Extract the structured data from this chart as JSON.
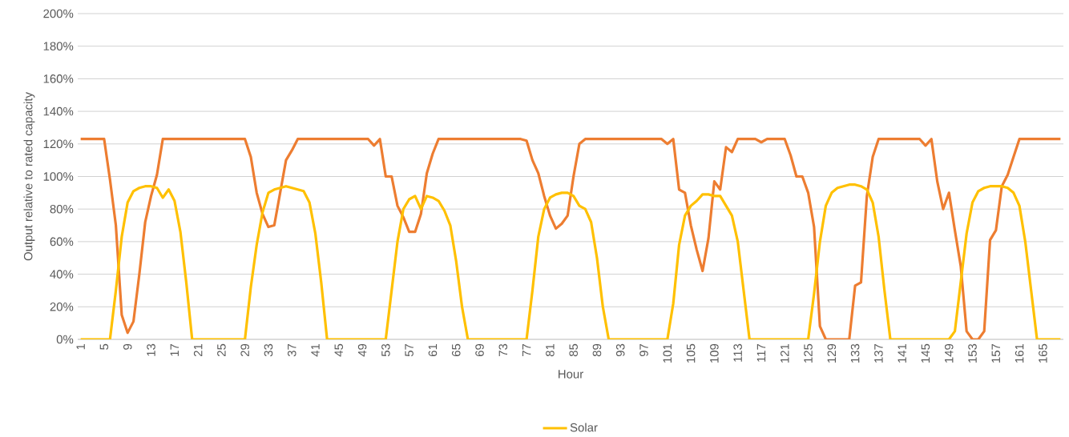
{
  "chart_data": {
    "type": "line",
    "xlabel": "Hour",
    "ylabel": "Output relative to rated capacity",
    "x": [
      1,
      2,
      3,
      4,
      5,
      6,
      7,
      8,
      9,
      10,
      11,
      12,
      13,
      14,
      15,
      16,
      17,
      18,
      19,
      20,
      21,
      22,
      23,
      24,
      25,
      26,
      27,
      28,
      29,
      30,
      31,
      32,
      33,
      34,
      35,
      36,
      37,
      38,
      39,
      40,
      41,
      42,
      43,
      44,
      45,
      46,
      47,
      48,
      49,
      50,
      51,
      52,
      53,
      54,
      55,
      56,
      57,
      58,
      59,
      60,
      61,
      62,
      63,
      64,
      65,
      66,
      67,
      68,
      69,
      70,
      71,
      72,
      73,
      74,
      75,
      76,
      77,
      78,
      79,
      80,
      81,
      82,
      83,
      84,
      85,
      86,
      87,
      88,
      89,
      90,
      91,
      92,
      93,
      94,
      95,
      96,
      97,
      98,
      99,
      100,
      101,
      102,
      103,
      104,
      105,
      106,
      107,
      108,
      109,
      110,
      111,
      112,
      113,
      114,
      115,
      116,
      117,
      118,
      119,
      120,
      121,
      122,
      123,
      124,
      125,
      126,
      127,
      128,
      129,
      130,
      131,
      132,
      133,
      134,
      135,
      136,
      137,
      138,
      139,
      140,
      141,
      142,
      143,
      144,
      145,
      146,
      147,
      148,
      149,
      150,
      151,
      152,
      153,
      154,
      155,
      156,
      157,
      158,
      159,
      160,
      161,
      162,
      163,
      164,
      165,
      166,
      167,
      168
    ],
    "series": [
      {
        "color": "#ed7d31",
        "values": [
          123,
          123,
          123,
          123,
          123,
          98,
          70,
          15,
          4,
          11,
          40,
          72,
          88,
          101,
          123,
          123,
          123,
          123,
          123,
          123,
          123,
          123,
          123,
          123,
          123,
          123,
          123,
          123,
          123,
          112,
          90,
          77,
          69,
          70,
          90,
          110,
          116,
          123,
          123,
          123,
          123,
          123,
          123,
          123,
          123,
          123,
          123,
          123,
          123,
          123,
          119,
          123,
          100,
          100,
          82,
          75,
          66,
          66,
          77,
          102,
          114,
          123,
          123,
          123,
          123,
          123,
          123,
          123,
          123,
          123,
          123,
          123,
          123,
          123,
          123,
          123,
          122,
          110,
          102,
          88,
          76,
          68,
          71,
          76,
          100,
          120,
          123,
          123,
          123,
          123,
          123,
          123,
          123,
          123,
          123,
          123,
          123,
          123,
          123,
          123,
          120,
          123,
          92,
          90,
          70,
          55,
          42,
          62,
          97,
          92,
          118,
          115,
          123,
          123,
          123,
          123,
          121,
          123,
          123,
          123,
          123,
          113,
          100,
          100,
          90,
          69,
          8,
          0,
          0,
          0,
          0,
          0,
          33,
          35,
          88,
          112,
          123,
          123,
          123,
          123,
          123,
          123,
          123,
          123,
          119,
          123,
          97,
          80,
          90,
          67,
          45,
          5,
          0,
          0,
          5,
          61,
          67,
          94,
          101,
          112,
          123,
          123,
          123,
          123,
          123,
          123,
          123,
          123
        ]
      },
      {
        "name": "Solar",
        "color": "#ffc000",
        "values": [
          0,
          0,
          0,
          0,
          0,
          0,
          30,
          63,
          84,
          91,
          93,
          94,
          94,
          93,
          87,
          92,
          85,
          66,
          35,
          0,
          0,
          0,
          0,
          0,
          0,
          0,
          0,
          0,
          0,
          32,
          58,
          78,
          90,
          92,
          93,
          94,
          93,
          92,
          91,
          84,
          65,
          35,
          0,
          0,
          0,
          0,
          0,
          0,
          0,
          0,
          0,
          0,
          0,
          30,
          60,
          80,
          86,
          88,
          80,
          88,
          87,
          85,
          79,
          70,
          48,
          20,
          0,
          0,
          0,
          0,
          0,
          0,
          0,
          0,
          0,
          0,
          0,
          30,
          63,
          80,
          87,
          89,
          90,
          90,
          88,
          82,
          80,
          72,
          50,
          20,
          0,
          0,
          0,
          0,
          0,
          0,
          0,
          0,
          0,
          0,
          0,
          22,
          58,
          76,
          82,
          85,
          89,
          89,
          88,
          88,
          82,
          76,
          60,
          30,
          0,
          0,
          0,
          0,
          0,
          0,
          0,
          0,
          0,
          0,
          0,
          28,
          60,
          82,
          90,
          93,
          94,
          95,
          95,
          94,
          92,
          84,
          63,
          30,
          0,
          0,
          0,
          0,
          0,
          0,
          0,
          0,
          0,
          0,
          0,
          5,
          35,
          65,
          84,
          91,
          93,
          94,
          94,
          94,
          93,
          90,
          82,
          60,
          30,
          0,
          0,
          0,
          0,
          0
        ]
      }
    ],
    "xlim": [
      0.5,
      168.5
    ],
    "xticks": [
      1,
      5,
      9,
      13,
      17,
      21,
      25,
      29,
      33,
      37,
      41,
      45,
      49,
      53,
      57,
      61,
      65,
      69,
      73,
      77,
      81,
      85,
      89,
      93,
      97,
      101,
      105,
      109,
      113,
      117,
      121,
      125,
      129,
      133,
      137,
      141,
      145,
      149,
      153,
      157,
      161,
      165
    ],
    "ylim": [
      0,
      200
    ],
    "yticks": [
      {
        "value": 0,
        "label": "0%"
      },
      {
        "value": 20,
        "label": "20%"
      },
      {
        "value": 40,
        "label": "40%"
      },
      {
        "value": 60,
        "label": "60%"
      },
      {
        "value": 80,
        "label": "80%"
      },
      {
        "value": 100,
        "label": "100%"
      },
      {
        "value": 120,
        "label": "120%"
      },
      {
        "value": 140,
        "label": "140%"
      },
      {
        "value": 160,
        "label": "160%"
      },
      {
        "value": 180,
        "label": "180%"
      },
      {
        "value": 200,
        "label": "200%"
      }
    ],
    "grid": "y",
    "legend": "bottom",
    "marker": "none",
    "line_style": "solid"
  }
}
